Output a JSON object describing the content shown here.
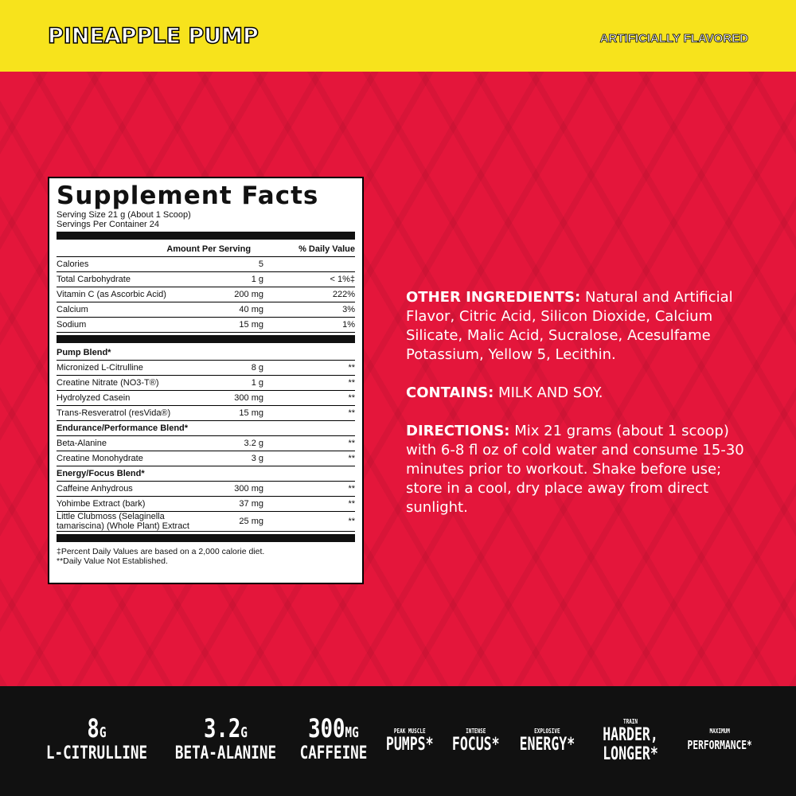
{
  "header": {
    "title": "PINEAPPLE PUMP",
    "flavor": "ARTIFICIALLY FLAVORED"
  },
  "facts": {
    "title": "Supplement Facts",
    "serving_size": "Serving Size 21 g (About 1 Scoop)",
    "servings": "Servings Per Container 24",
    "columns": [
      "Amount Per Serving",
      "% Daily Value"
    ],
    "rows": [
      [
        "Calories",
        "5",
        ""
      ],
      [
        "Total Carbohydrate",
        "1 g",
        "< 1%‡"
      ],
      [
        "Vitamin C (as Ascorbic Acid)",
        "200 mg",
        "222%"
      ],
      [
        "Calcium",
        "40 mg",
        "3%"
      ],
      [
        "Sodium",
        "15 mg",
        "1%"
      ]
    ],
    "blends": [
      {
        "name": "Pump Blend*",
        "rows": [
          [
            "Micronized L-Citrulline",
            "8 g",
            "**"
          ],
          [
            "Creatine Nitrate (NO3-T®)",
            "1 g",
            "**"
          ],
          [
            "Hydrolyzed Casein",
            "300 mg",
            "**"
          ],
          [
            "Trans-Resveratrol (resVida®)",
            "15 mg",
            "**"
          ]
        ]
      },
      {
        "name": "Endurance/Performance Blend*",
        "rows": [
          [
            "Beta-Alanine",
            "3.2 g",
            "**"
          ],
          [
            "Creatine Monohydrate",
            "3 g",
            "**"
          ]
        ]
      },
      {
        "name": "Energy/Focus Blend*",
        "rows": [
          [
            "Caffeine Anhydrous",
            "300 mg",
            "**"
          ],
          [
            "Yohimbe Extract (bark)",
            "37 mg",
            "**"
          ],
          [
            "Little Clubmoss (Selaginella tamariscina) (Whole Plant) Extract",
            "25 mg",
            "**"
          ]
        ]
      }
    ],
    "footnotes": [
      "‡Percent Daily Values are based on a 2,000 calorie diet.",
      "**Daily Value Not Established."
    ]
  },
  "info": [
    {
      "label": "OTHER INGREDIENTS:",
      "text": "Natural and Artificial Flavor, Citric Acid, Silicon Dioxide, Calcium Silicate, Malic Acid, Sucralose, Acesulfame Potassium, Yellow 5, Lecithin."
    },
    {
      "label": "CONTAINS:",
      "text": "MILK AND SOY."
    },
    {
      "label": "DIRECTIONS:",
      "text": "Mix 21 grams (about 1 scoop) with 6-8 fl oz of cold water and consume 15-30 minutes prior to workout. Shake before use; store in a cool, dry place away from direct sunlight."
    }
  ],
  "stats": [
    {
      "value": "8",
      "unit": "G",
      "label": "L-CITRULLINE"
    },
    {
      "value": "3.2",
      "unit": "G",
      "label": "BETA-ALANINE"
    },
    {
      "value": "300",
      "unit": "MG",
      "label": "CAFFEINE"
    }
  ],
  "claims": [
    {
      "small": "PEAK MUSCLE",
      "big": "PUMPS*"
    },
    {
      "small": "INTENSE",
      "big": "FOCUS*"
    },
    {
      "small": "EXPLOSIVE",
      "big": "ENERGY*"
    },
    {
      "small": "TRAIN",
      "big": "HARDER, LONGER*"
    },
    {
      "small": "MAXIMUM",
      "big": "PERFORMANCE*"
    }
  ]
}
